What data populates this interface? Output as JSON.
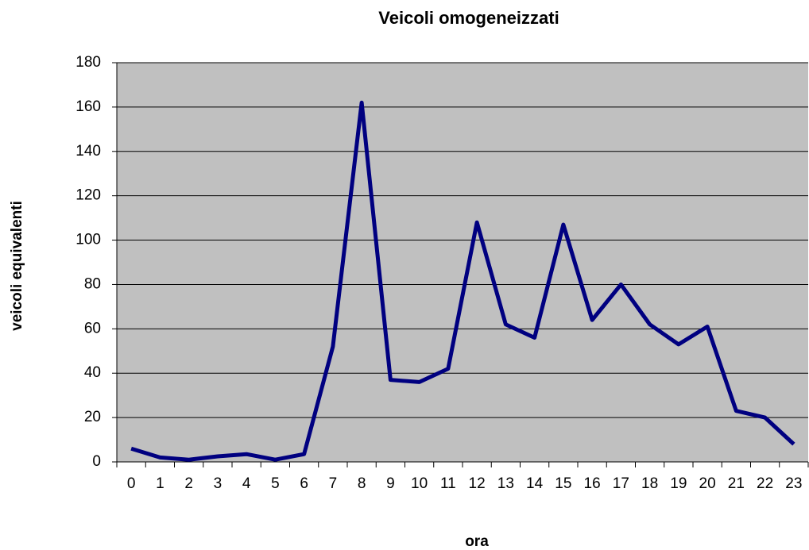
{
  "chart_data": {
    "type": "line",
    "title": "Veicoli omogeneizzati",
    "xlabel": "ora",
    "ylabel": "veicoli equivalenti",
    "categories": [
      "0",
      "1",
      "2",
      "3",
      "4",
      "5",
      "6",
      "7",
      "8",
      "9",
      "10",
      "11",
      "12",
      "13",
      "14",
      "15",
      "16",
      "17",
      "18",
      "19",
      "20",
      "21",
      "22",
      "23"
    ],
    "series": [
      {
        "name": "veicoli equivalenti",
        "color": "#000080",
        "values": [
          6,
          2,
          1,
          2.5,
          3.5,
          1,
          3.5,
          52,
          162,
          37,
          36,
          42,
          108,
          62,
          56,
          107,
          64,
          80,
          62,
          53,
          61,
          23,
          20,
          8
        ]
      }
    ],
    "ylim": [
      0,
      180
    ],
    "yticks": [
      0,
      20,
      40,
      60,
      80,
      100,
      120,
      140,
      160,
      180
    ],
    "grid": true
  }
}
